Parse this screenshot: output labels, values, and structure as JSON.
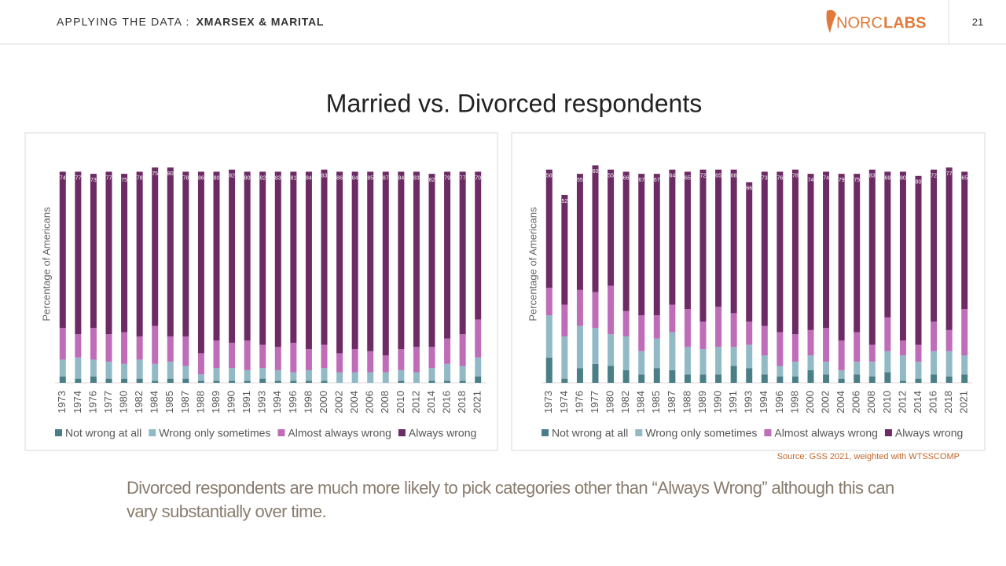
{
  "header": {
    "section": "APPLYING THE DATA :",
    "topic": "XMARSEX & MARITAL",
    "logo_left": "NORC",
    "logo_right": "LABS",
    "page_number": "21"
  },
  "title": "Married vs. Divorced respondents",
  "source": "Source: GSS 2021, weighted with WTSSCOMP",
  "note": "Divorced respondents are much more likely to pick categories other than “Always Wrong” although this can vary substantially over time.",
  "chart_data": [
    {
      "type": "bar",
      "stacked": true,
      "y_label": "Percentage of Americans",
      "ylim": [
        0,
        105
      ],
      "legend": "bottom",
      "categories": [
        "1973",
        "1974",
        "1976",
        "1977",
        "1980",
        "1982",
        "1984",
        "1985",
        "1987",
        "1988",
        "1989",
        "1990",
        "1991",
        "1993",
        "1994",
        "1996",
        "1998",
        "2000",
        "2002",
        "2004",
        "2006",
        "2008",
        "2010",
        "2012",
        "2014",
        "2016",
        "2018",
        "2021"
      ],
      "series": [
        {
          "name": "Not wrong at all",
          "color": "#4b7f88",
          "values": [
            3,
            2,
            3,
            2,
            2,
            2,
            1,
            2,
            2,
            1,
            1,
            1,
            1,
            2,
            1,
            1,
            1,
            1,
            0,
            0,
            0,
            0,
            1,
            0,
            1,
            1,
            1,
            3
          ]
        },
        {
          "name": "Wrong only sometimes",
          "color": "#92bac6",
          "values": [
            8,
            10,
            8,
            8,
            7,
            9,
            8,
            8,
            6,
            3,
            6,
            6,
            5,
            5,
            5,
            4,
            5,
            6,
            5,
            5,
            5,
            5,
            5,
            5,
            6,
            8,
            7,
            9
          ]
        },
        {
          "name": "Almost always wrong",
          "color": "#bf6cb9",
          "values": [
            15,
            11,
            15,
            13,
            15,
            11,
            18,
            12,
            14,
            10,
            13,
            12,
            14,
            11,
            11,
            14,
            10,
            11,
            9,
            11,
            10,
            8,
            10,
            12,
            10,
            12,
            15,
            18
          ]
        },
        {
          "name": "Always wrong",
          "color": "#6c2b64",
          "labels": true,
          "values": [
            74,
            77,
            73,
            77,
            75,
            78,
            75,
            80,
            78,
            86,
            80,
            82,
            80,
            82,
            83,
            81,
            84,
            83,
            86,
            84,
            85,
            87,
            84,
            83,
            82,
            79,
            77,
            70
          ]
        }
      ]
    },
    {
      "type": "bar",
      "stacked": true,
      "y_label": "Percentage of Americans",
      "ylim": [
        0,
        105
      ],
      "legend": "bottom",
      "categories": [
        "1973",
        "1974",
        "1976",
        "1977",
        "1980",
        "1982",
        "1984",
        "1985",
        "1987",
        "1988",
        "1989",
        "1990",
        "1991",
        "1993",
        "1994",
        "1996",
        "1998",
        "2000",
        "2002",
        "2004",
        "2006",
        "2008",
        "2010",
        "2012",
        "2014",
        "2016",
        "2018",
        "2021"
      ],
      "series": [
        {
          "name": "Not wrong at all",
          "color": "#4b7f88",
          "values": [
            12,
            2,
            7,
            9,
            8,
            6,
            4,
            7,
            6,
            4,
            4,
            4,
            8,
            7,
            4,
            3,
            3,
            6,
            4,
            2,
            4,
            3,
            5,
            1,
            2,
            4,
            3,
            4
          ]
        },
        {
          "name": "Wrong only sometimes",
          "color": "#92bac6",
          "values": [
            20,
            20,
            20,
            17,
            15,
            16,
            11,
            14,
            18,
            13,
            12,
            13,
            9,
            11,
            9,
            5,
            7,
            7,
            6,
            4,
            6,
            7,
            10,
            12,
            8,
            11,
            12,
            9
          ]
        },
        {
          "name": "Almost always wrong",
          "color": "#bf6cb9",
          "values": [
            13,
            15,
            17,
            17,
            23,
            12,
            17,
            11,
            13,
            18,
            13,
            19,
            16,
            11,
            14,
            16,
            13,
            12,
            16,
            14,
            14,
            8,
            16,
            7,
            8,
            14,
            10,
            22
          ]
        },
        {
          "name": "Always wrong",
          "color": "#6c2b64",
          "labels": true,
          "values": [
            56,
            52,
            55,
            60,
            55,
            66,
            67,
            67,
            64,
            65,
            72,
            65,
            68,
            66,
            73,
            76,
            78,
            74,
            74,
            79,
            75,
            83,
            69,
            80,
            80,
            72,
            77,
            65
          ]
        }
      ]
    }
  ]
}
